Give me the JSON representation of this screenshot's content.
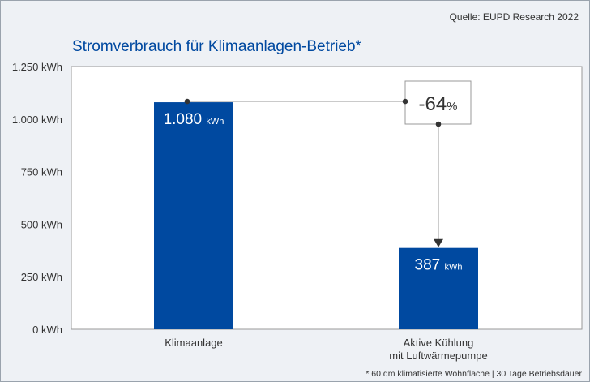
{
  "source": "Quelle: EUPD Research 2022",
  "footnote": "* 60 qm klimatisierte Wohnfläche | 30 Tage Betriebsdauer",
  "colors": {
    "bar": "#0049a0",
    "background": "#eef1f5",
    "plot": "#ffffff",
    "connector": "#aaaaaa",
    "title": "#0049a0"
  },
  "chart_data": {
    "type": "bar",
    "title": "Stromverbrauch für Klimaanlagen-Betrieb*",
    "categories": [
      "Klimaanlage",
      [
        "Aktive Kühlung",
        "mit Luftwärmepumpe"
      ]
    ],
    "values": [
      1080,
      387
    ],
    "data_labels": [
      {
        "value": "1.080",
        "unit": "kWh"
      },
      {
        "value": "387",
        "unit": "kWh"
      }
    ],
    "ylim": [
      0,
      1250
    ],
    "yticks": [
      0,
      250,
      500,
      750,
      1000,
      1250
    ],
    "ytick_labels": [
      "0 kWh",
      "250 kWh",
      "500 kWh",
      "750 kWh",
      "1.000 kWh",
      "1.250 kWh"
    ],
    "grid": false,
    "annotation": {
      "value": "-64",
      "unit": "%"
    }
  }
}
